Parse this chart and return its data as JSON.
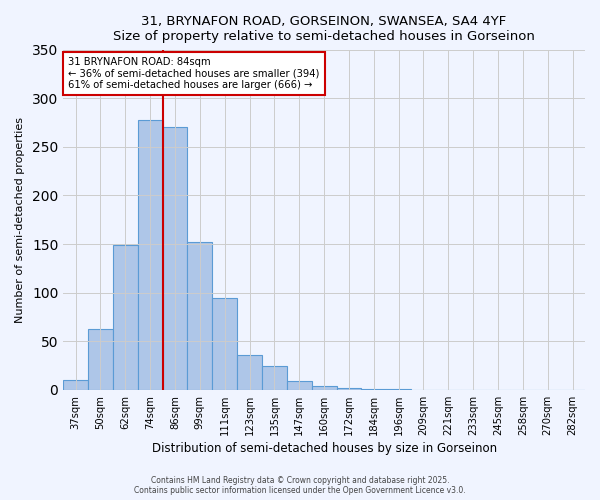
{
  "title": "31, BRYNAFON ROAD, GORSEINON, SWANSEA, SA4 4YF",
  "subtitle": "Size of property relative to semi-detached houses in Gorseinon",
  "xlabel": "Distribution of semi-detached houses by size in Gorseinon",
  "ylabel": "Number of semi-detached properties",
  "bin_labels": [
    "37sqm",
    "50sqm",
    "62sqm",
    "74sqm",
    "86sqm",
    "99sqm",
    "111sqm",
    "123sqm",
    "135sqm",
    "147sqm",
    "160sqm",
    "172sqm",
    "184sqm",
    "196sqm",
    "209sqm",
    "221sqm",
    "233sqm",
    "245sqm",
    "258sqm",
    "270sqm",
    "282sqm"
  ],
  "bar_values": [
    10,
    63,
    149,
    278,
    270,
    152,
    95,
    36,
    24,
    9,
    4,
    2,
    1,
    1,
    0,
    0,
    0,
    0,
    0,
    0,
    0
  ],
  "bar_color": "#aec6e8",
  "bar_edge_color": "#5b9bd5",
  "vline_pos": 3.5,
  "vline_color": "#cc0000",
  "annotation_title": "31 BRYNAFON ROAD: 84sqm",
  "annotation_line1": "← 36% of semi-detached houses are smaller (394)",
  "annotation_line2": "61% of semi-detached houses are larger (666) →",
  "annotation_box_color": "#ffffff",
  "annotation_box_edge": "#cc0000",
  "ylim": [
    0,
    350
  ],
  "yticks": [
    0,
    50,
    100,
    150,
    200,
    250,
    300,
    350
  ],
  "footer1": "Contains HM Land Registry data © Crown copyright and database right 2025.",
  "footer2": "Contains public sector information licensed under the Open Government Licence v3.0.",
  "bg_color": "#f0f4ff"
}
